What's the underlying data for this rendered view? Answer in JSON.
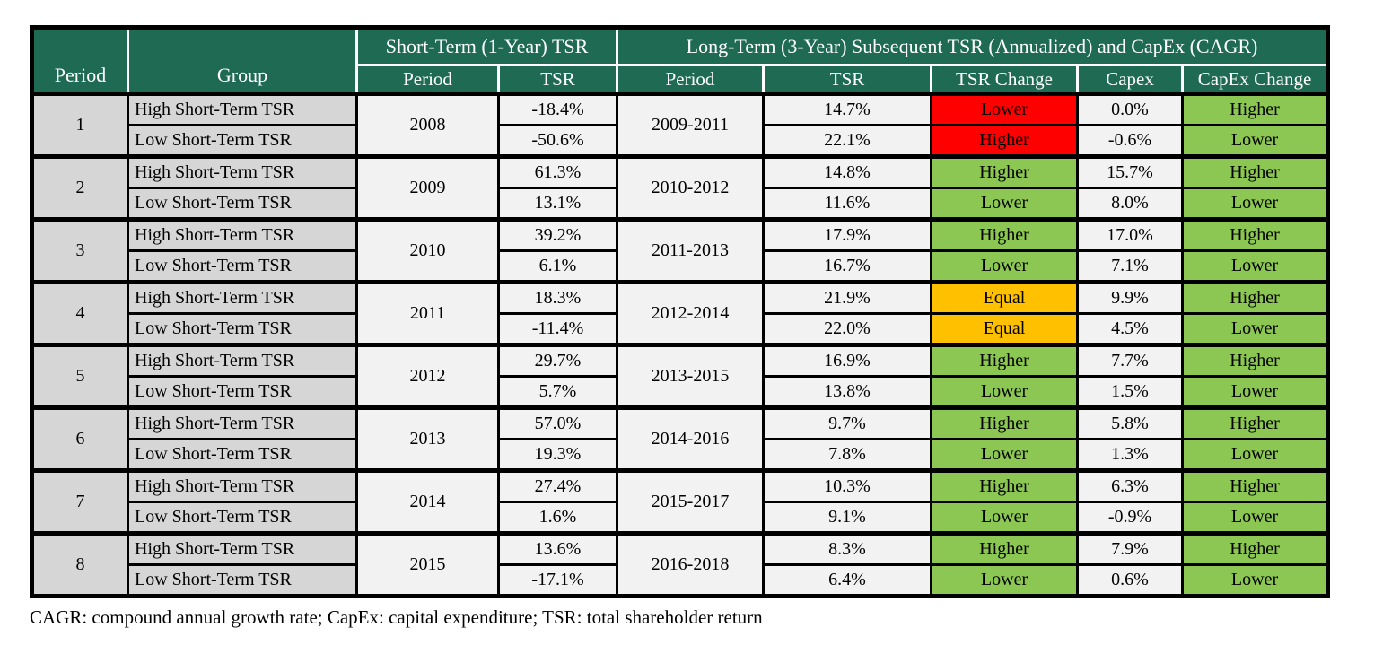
{
  "chart_data": {
    "type": "table",
    "title": "",
    "colors": {
      "header_bg": "#1E6A52",
      "gray": "#D6D6D6",
      "light": "#F2F2F2",
      "red": "#FE0000",
      "green": "#8BC752",
      "orange": "#FFC000"
    },
    "header": {
      "period": "Period",
      "group": "Group",
      "short_term_span": "Short-Term (1-Year) TSR",
      "long_term_span": "Long-Term (3-Year) Subsequent TSR (Annualized) and CapEx (CAGR)",
      "sub": {
        "st_period": "Period",
        "st_tsr": "TSR",
        "lt_period": "Period",
        "lt_tsr": "TSR",
        "tsr_change": "TSR Change",
        "capex": "Capex",
        "capex_change": "CapEx Change"
      }
    },
    "groups": [
      {
        "period": "1",
        "st_period": "2008",
        "lt_period": "2009-2011",
        "rows": [
          {
            "group": "High Short-Term TSR",
            "st_tsr": "-18.4%",
            "lt_tsr": "14.7%",
            "tsr_change": "Lower",
            "tsr_change_color": "red",
            "capex": "0.0%",
            "capex_change": "Higher",
            "capex_change_color": "green"
          },
          {
            "group": "Low Short-Term TSR",
            "st_tsr": "-50.6%",
            "lt_tsr": "22.1%",
            "tsr_change": "Higher",
            "tsr_change_color": "red",
            "capex": "-0.6%",
            "capex_change": "Lower",
            "capex_change_color": "green"
          }
        ]
      },
      {
        "period": "2",
        "st_period": "2009",
        "lt_period": "2010-2012",
        "rows": [
          {
            "group": "High Short-Term TSR",
            "st_tsr": "61.3%",
            "lt_tsr": "14.8%",
            "tsr_change": "Higher",
            "tsr_change_color": "green",
            "capex": "15.7%",
            "capex_change": "Higher",
            "capex_change_color": "green"
          },
          {
            "group": "Low Short-Term TSR",
            "st_tsr": "13.1%",
            "lt_tsr": "11.6%",
            "tsr_change": "Lower",
            "tsr_change_color": "green",
            "capex": "8.0%",
            "capex_change": "Lower",
            "capex_change_color": "green"
          }
        ]
      },
      {
        "period": "3",
        "st_period": "2010",
        "lt_period": "2011-2013",
        "rows": [
          {
            "group": "High Short-Term TSR",
            "st_tsr": "39.2%",
            "lt_tsr": "17.9%",
            "tsr_change": "Higher",
            "tsr_change_color": "green",
            "capex": "17.0%",
            "capex_change": "Higher",
            "capex_change_color": "green"
          },
          {
            "group": "Low Short-Term TSR",
            "st_tsr": "6.1%",
            "lt_tsr": "16.7%",
            "tsr_change": "Lower",
            "tsr_change_color": "green",
            "capex": "7.1%",
            "capex_change": "Lower",
            "capex_change_color": "green"
          }
        ]
      },
      {
        "period": "4",
        "st_period": "2011",
        "lt_period": "2012-2014",
        "rows": [
          {
            "group": "High Short-Term TSR",
            "st_tsr": "18.3%",
            "lt_tsr": "21.9%",
            "tsr_change": "Equal",
            "tsr_change_color": "orange",
            "capex": "9.9%",
            "capex_change": "Higher",
            "capex_change_color": "green"
          },
          {
            "group": "Low Short-Term TSR",
            "st_tsr": "-11.4%",
            "lt_tsr": "22.0%",
            "tsr_change": "Equal",
            "tsr_change_color": "orange",
            "capex": "4.5%",
            "capex_change": "Lower",
            "capex_change_color": "green"
          }
        ]
      },
      {
        "period": "5",
        "st_period": "2012",
        "lt_period": "2013-2015",
        "rows": [
          {
            "group": "High Short-Term TSR",
            "st_tsr": "29.7%",
            "lt_tsr": "16.9%",
            "tsr_change": "Higher",
            "tsr_change_color": "green",
            "capex": "7.7%",
            "capex_change": "Higher",
            "capex_change_color": "green"
          },
          {
            "group": "Low Short-Term TSR",
            "st_tsr": "5.7%",
            "lt_tsr": "13.8%",
            "tsr_change": "Lower",
            "tsr_change_color": "green",
            "capex": "1.5%",
            "capex_change": "Lower",
            "capex_change_color": "green"
          }
        ]
      },
      {
        "period": "6",
        "st_period": "2013",
        "lt_period": "2014-2016",
        "rows": [
          {
            "group": "High Short-Term TSR",
            "st_tsr": "57.0%",
            "lt_tsr": "9.7%",
            "tsr_change": "Higher",
            "tsr_change_color": "green",
            "capex": "5.8%",
            "capex_change": "Higher",
            "capex_change_color": "green"
          },
          {
            "group": "Low Short-Term TSR",
            "st_tsr": "19.3%",
            "lt_tsr": "7.8%",
            "tsr_change": "Lower",
            "tsr_change_color": "green",
            "capex": "1.3%",
            "capex_change": "Lower",
            "capex_change_color": "green"
          }
        ]
      },
      {
        "period": "7",
        "st_period": "2014",
        "lt_period": "2015-2017",
        "rows": [
          {
            "group": "High Short-Term TSR",
            "st_tsr": "27.4%",
            "lt_tsr": "10.3%",
            "tsr_change": "Higher",
            "tsr_change_color": "green",
            "capex": "6.3%",
            "capex_change": "Higher",
            "capex_change_color": "green"
          },
          {
            "group": "Low Short-Term TSR",
            "st_tsr": "1.6%",
            "lt_tsr": "9.1%",
            "tsr_change": "Lower",
            "tsr_change_color": "green",
            "capex": "-0.9%",
            "capex_change": "Lower",
            "capex_change_color": "green"
          }
        ]
      },
      {
        "period": "8",
        "st_period": "2015",
        "lt_period": "2016-2018",
        "rows": [
          {
            "group": "High Short-Term TSR",
            "st_tsr": "13.6%",
            "lt_tsr": "8.3%",
            "tsr_change": "Higher",
            "tsr_change_color": "green",
            "capex": "7.9%",
            "capex_change": "Higher",
            "capex_change_color": "green"
          },
          {
            "group": "Low Short-Term TSR",
            "st_tsr": "-17.1%",
            "lt_tsr": "6.4%",
            "tsr_change": "Lower",
            "tsr_change_color": "green",
            "capex": "0.6%",
            "capex_change": "Lower",
            "capex_change_color": "green"
          }
        ]
      }
    ],
    "footnote": "CAGR: compound annual growth rate; CapEx: capital expenditure; TSR: total shareholder return"
  }
}
